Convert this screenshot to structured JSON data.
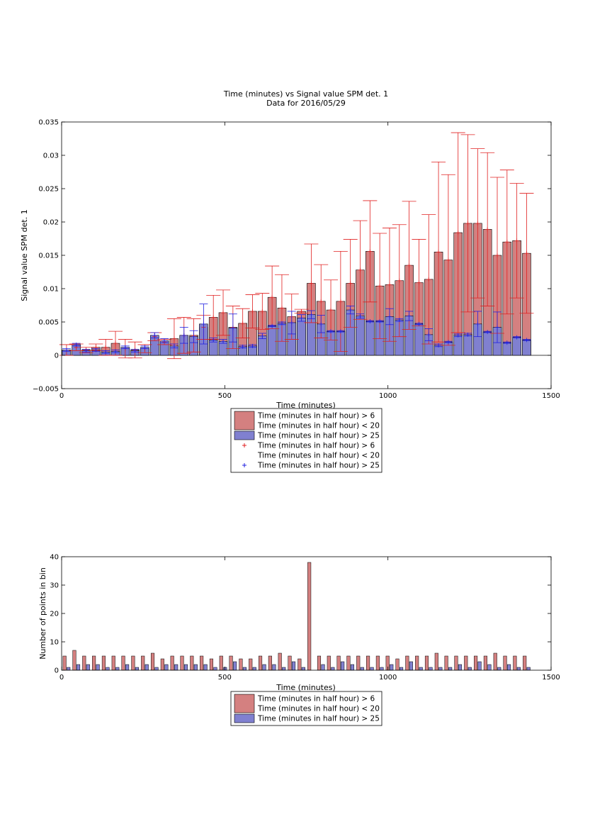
{
  "colors": {
    "red_fill": "#d48080",
    "blue_fill": "#8080d0",
    "red_err": "#e02020",
    "blue_err": "#2020e0"
  },
  "chart_data": [
    {
      "type": "bar",
      "title": "Time (minutes) vs Signal value SPM det. 1",
      "subtitle": "Data for 2016/05/29",
      "xlabel": "Time (minutes)",
      "ylabel": "Signal value SPM det. 1",
      "xlim": [
        0,
        1500
      ],
      "ylim": [
        -0.005,
        0.035
      ],
      "xticks": [
        0,
        500,
        1000,
        1500
      ],
      "yticks": [
        -0.005,
        0,
        0.005,
        0.01,
        0.015,
        0.02,
        0.025,
        0.03,
        0.035
      ],
      "ytick_labels": [
        "−0.005",
        "0",
        "0.005",
        "0.01",
        "0.015",
        "0.02",
        "0.025",
        "0.03",
        "0.035"
      ],
      "grid": false,
      "legend_position": "below",
      "x": [
        15,
        45,
        75,
        105,
        135,
        165,
        195,
        225,
        255,
        285,
        315,
        345,
        375,
        405,
        435,
        465,
        495,
        525,
        555,
        585,
        615,
        645,
        675,
        705,
        735,
        765,
        795,
        825,
        855,
        885,
        915,
        945,
        975,
        1005,
        1035,
        1065,
        1095,
        1125,
        1155,
        1185,
        1215,
        1245,
        1275,
        1305,
        1335,
        1365,
        1395,
        1425
      ],
      "series": [
        {
          "name": "Time (minutes in half hour) > 6\nTime (minutes in half hour) < 20",
          "values": [
            0.0008,
            0.0012,
            0.0008,
            0.0012,
            0.0012,
            0.0018,
            0.001,
            0.0008,
            0.001,
            0.0028,
            0.002,
            0.0025,
            0.003,
            0.003,
            0.0042,
            0.0057,
            0.0064,
            0.0042,
            0.0048,
            0.0066,
            0.0066,
            0.0087,
            0.0071,
            0.0058,
            0.0066,
            0.0108,
            0.0081,
            0.0068,
            0.0081,
            0.0108,
            0.0128,
            0.0156,
            0.0104,
            0.0106,
            0.0112,
            0.0135,
            0.0109,
            0.0114,
            0.0155,
            0.0143,
            0.0184,
            0.0198,
            0.0198,
            0.0189,
            0.015,
            0.017,
            0.0172,
            0.0153
          ],
          "err": [
            0.0008,
            0.0005,
            0.0004,
            0.0005,
            0.0012,
            0.0018,
            0.0014,
            0.0012,
            0.0006,
            0.0006,
            0.0004,
            0.003,
            0.0027,
            0.0025,
            0.0018,
            0.0033,
            0.0034,
            0.0032,
            0.0022,
            0.0025,
            0.0027,
            0.0047,
            0.005,
            0.0034,
            0.0003,
            0.0059,
            0.0055,
            0.0045,
            0.0075,
            0.0066,
            0.0074,
            0.0076,
            0.0079,
            0.0085,
            0.0084,
            0.0096,
            0.0065,
            0.0097,
            0.0135,
            0.0128,
            0.015,
            0.0133,
            0.0112,
            0.0115,
            0.0117,
            0.0108,
            0.0086,
            0.009
          ]
        },
        {
          "name": "Time (minutes in half hour) > 25",
          "values": [
            0.0008,
            0.0016,
            0.0007,
            0.0008,
            0.0005,
            0.0006,
            0.0012,
            0.0007,
            0.0012,
            0.003,
            0.0022,
            0.0014,
            0.003,
            0.0028,
            0.0047,
            0.0023,
            0.0021,
            0.0041,
            0.0013,
            0.0014,
            0.0029,
            0.0044,
            0.0048,
            0.0049,
            0.0056,
            0.0061,
            0.0047,
            0.0036,
            0.0036,
            0.0068,
            0.0059,
            0.0051,
            0.0051,
            0.0058,
            0.0053,
            0.0059,
            0.0047,
            0.0031,
            0.0015,
            0.002,
            0.003,
            0.0031,
            0.0047,
            0.0035,
            0.0042,
            0.0019,
            0.0027,
            0.0023
          ],
          "err": [
            0.0002,
            0.0002,
            0.0002,
            0.0002,
            0.0002,
            0.0002,
            0.0002,
            0.0002,
            0.0002,
            0.0004,
            0.0003,
            0.0003,
            0.0012,
            0.0009,
            0.003,
            0.0003,
            0.0003,
            0.0021,
            0.0002,
            0.0002,
            0.0004,
            0.0001,
            0.0002,
            0.0017,
            0.0005,
            0.0006,
            0.0013,
            0.0001,
            0.0001,
            0.0006,
            0.0003,
            0.0001,
            0.0001,
            0.0012,
            0.0002,
            0.0007,
            0.0001,
            0.0009,
            0.0002,
            0.0001,
            0.0002,
            0.0002,
            0.0019,
            0.0001,
            0.0023,
            0.0001,
            0.0001,
            0.0001
          ]
        }
      ],
      "legend": [
        {
          "kind": "bar",
          "color": "red_fill",
          "lines": [
            "Time (minutes in half hour) > 6",
            "Time (minutes in half hour) < 20"
          ]
        },
        {
          "kind": "bar",
          "color": "blue_fill",
          "lines": [
            "Time (minutes in half hour) > 25"
          ]
        },
        {
          "kind": "marker",
          "color": "red_err",
          "lines": [
            "Time (minutes in half hour) > 6",
            "Time (minutes in half hour) < 20"
          ]
        },
        {
          "kind": "marker",
          "color": "blue_err",
          "lines": [
            "Time (minutes in half hour) > 25"
          ]
        }
      ]
    },
    {
      "type": "bar",
      "title": "",
      "xlabel": "Time (minutes)",
      "ylabel": "Number of points in bin",
      "xlim": [
        0,
        1500
      ],
      "ylim": [
        0,
        40
      ],
      "xticks": [
        0,
        500,
        1000,
        1500
      ],
      "yticks": [
        0,
        10,
        20,
        30,
        40
      ],
      "ytick_labels": [
        "0",
        "10",
        "20",
        "30",
        "40"
      ],
      "grid": false,
      "legend_position": "below",
      "x": [
        15,
        45,
        75,
        105,
        135,
        165,
        195,
        225,
        255,
        285,
        315,
        345,
        375,
        405,
        435,
        465,
        495,
        525,
        555,
        585,
        615,
        645,
        675,
        705,
        735,
        765,
        795,
        825,
        855,
        885,
        915,
        945,
        975,
        1005,
        1035,
        1065,
        1095,
        1125,
        1155,
        1185,
        1215,
        1245,
        1275,
        1305,
        1335,
        1365,
        1395,
        1425
      ],
      "series": [
        {
          "name": "Time (minutes in half hour) > 6\nTime (minutes in half hour) < 20",
          "values": [
            5,
            7,
            5,
            5,
            5,
            5,
            5,
            5,
            5,
            6,
            4,
            5,
            5,
            5,
            5,
            4,
            5,
            5,
            4,
            4,
            5,
            5,
            6,
            5,
            4,
            38,
            5,
            5,
            5,
            5,
            5,
            5,
            5,
            5,
            4,
            5,
            5,
            5,
            6,
            5,
            5,
            5,
            5,
            5,
            6,
            5,
            5,
            5
          ]
        },
        {
          "name": "Time (minutes in half hour) > 25",
          "values": [
            1,
            2,
            2,
            2,
            1,
            1,
            2,
            1,
            2,
            1,
            2,
            2,
            2,
            2,
            2,
            1,
            1,
            3,
            1,
            1,
            2,
            2,
            1,
            3,
            1,
            0,
            2,
            1,
            3,
            2,
            1,
            1,
            1,
            2,
            1,
            3,
            1,
            1,
            1,
            1,
            2,
            1,
            3,
            2,
            1,
            2,
            1,
            1
          ]
        }
      ],
      "legend": [
        {
          "kind": "bar",
          "color": "red_fill",
          "lines": [
            "Time (minutes in half hour) > 6",
            "Time (minutes in half hour) < 20"
          ]
        },
        {
          "kind": "bar",
          "color": "blue_fill",
          "lines": [
            "Time (minutes in half hour) > 25"
          ]
        }
      ]
    }
  ]
}
